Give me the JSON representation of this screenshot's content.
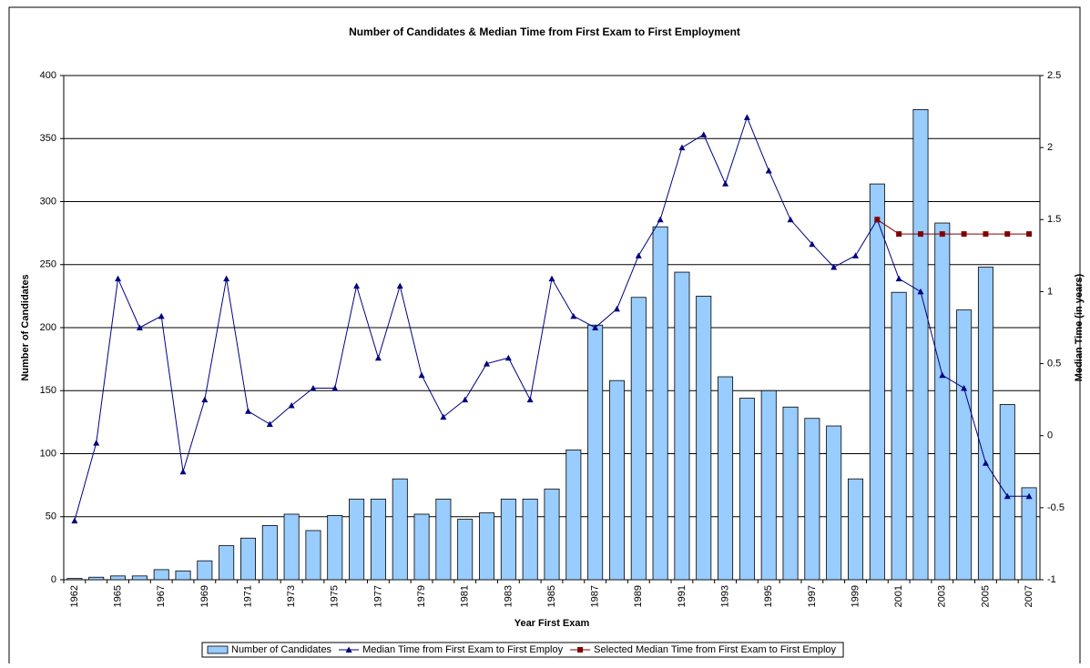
{
  "chart_data": {
    "type": "bar-line",
    "title": "Number of Candidates & Median Time from First Exam to First Employment",
    "x_label": "Year First Exam",
    "y_label": "Number of Candidates",
    "y2_label": "Median Time (in years)",
    "categories": [
      "1962",
      null,
      "1965",
      null,
      "1967",
      null,
      "1969",
      null,
      "1971",
      null,
      "1973",
      null,
      "1975",
      null,
      "1977",
      null,
      "1979",
      null,
      "1981",
      null,
      "1983",
      null,
      "1985",
      null,
      "1987",
      null,
      "1989",
      null,
      "1991",
      null,
      "1993",
      null,
      "1995",
      null,
      "1997",
      null,
      "1999",
      null,
      "2001",
      null,
      "2003",
      null,
      "2005",
      null,
      "2007"
    ],
    "series": [
      {
        "name": "Number of Candidates",
        "type": "bar",
        "color": "#99ccff",
        "values": [
          1,
          2,
          3,
          3,
          8,
          7,
          15,
          27,
          33,
          43,
          52,
          39,
          51,
          64,
          64,
          80,
          52,
          64,
          48,
          53,
          64,
          64,
          72,
          103,
          202,
          158,
          224,
          280,
          244,
          225,
          161,
          144,
          150,
          137,
          128,
          122,
          80,
          314,
          228,
          373,
          283,
          214,
          248,
          139,
          73
        ]
      },
      {
        "name": "Median Time from First Exam to First Employ",
        "type": "line",
        "axis": "y2",
        "color": "#000080",
        "marker": "triangle",
        "values": [
          -0.59,
          -0.05,
          1.09,
          0.75,
          0.83,
          -0.25,
          0.25,
          1.09,
          0.17,
          0.08,
          0.21,
          0.33,
          0.33,
          1.04,
          0.54,
          1.04,
          0.42,
          0.13,
          0.25,
          0.5,
          0.54,
          0.25,
          1.09,
          0.83,
          0.75,
          0.88,
          1.25,
          1.5,
          2.0,
          2.09,
          1.75,
          2.21,
          1.84,
          1.5,
          1.33,
          1.17,
          1.25,
          1.5,
          1.09,
          1.0,
          0.42,
          0.33,
          -0.19,
          -0.42,
          -0.42
        ]
      },
      {
        "name": "Selected Median Time from First Exam to First Employ",
        "type": "line",
        "axis": "y2",
        "color": "#800000",
        "marker": "square",
        "values": [
          null,
          null,
          null,
          null,
          null,
          null,
          null,
          null,
          null,
          null,
          null,
          null,
          null,
          null,
          null,
          null,
          null,
          null,
          null,
          null,
          null,
          null,
          null,
          null,
          null,
          null,
          null,
          null,
          null,
          null,
          null,
          null,
          null,
          null,
          null,
          null,
          null,
          1.5,
          1.4,
          1.4,
          1.4,
          1.4,
          1.4,
          1.4,
          1.4
        ]
      }
    ],
    "ylim": [
      0,
      400
    ],
    "yticks": [
      0,
      50,
      100,
      150,
      200,
      250,
      300,
      350,
      400
    ],
    "y2lim": [
      -1,
      2.5
    ],
    "y2ticks": [
      -1,
      -0.5,
      0,
      0.5,
      1,
      1.5,
      2,
      2.5
    ],
    "grid": true,
    "legend": "bottom"
  }
}
